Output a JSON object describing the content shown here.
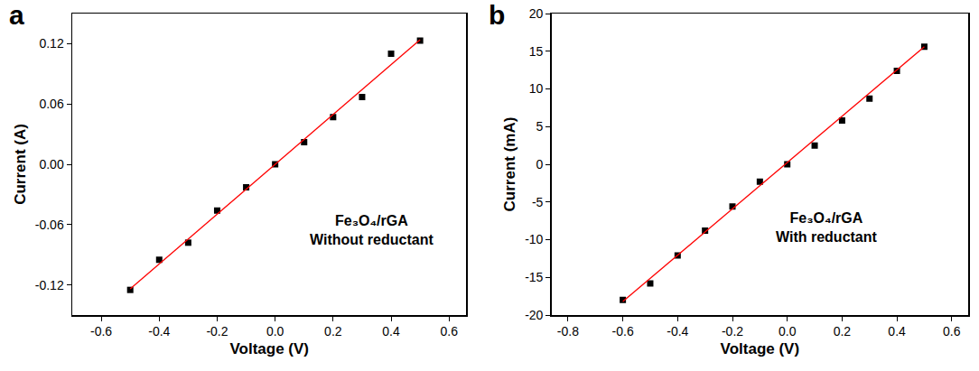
{
  "chart_data": [
    {
      "type": "scatter",
      "label": "a",
      "annotations": [
        "Fe₃O₄/rGA",
        "Without reductant"
      ],
      "x_label": "Voltage (V)",
      "y_label": "Current (A)",
      "xlim": [
        -0.7,
        0.66
      ],
      "ylim": [
        -0.15,
        0.15
      ],
      "xticks": [
        -0.6,
        -0.4,
        -0.2,
        {
          "value": 0,
          "label": "0.0"
        },
        0.2,
        0.4,
        0.6
      ],
      "yticks": [
        -0.12,
        -0.06,
        {
          "value": 0,
          "label": "0.00"
        },
        0.06,
        0.12
      ],
      "grid": false,
      "series": [
        {
          "type": "scatter",
          "marker": "square",
          "color": "#000000",
          "x": [
            -0.5,
            -0.4,
            -0.3,
            -0.2,
            -0.1,
            0,
            0.1,
            0.2,
            0.3,
            0.4,
            0.5
          ],
          "values": [
            -0.125,
            -0.095,
            -0.078,
            -0.046,
            -0.023,
            0,
            0.022,
            0.047,
            0.067,
            0.11,
            0.123
          ]
        },
        {
          "type": "line",
          "line_style": "solid",
          "color": "#ff0000",
          "x": [
            -0.5,
            0.5
          ],
          "values": [
            -0.124,
            0.124
          ]
        }
      ]
    },
    {
      "type": "scatter",
      "label": "b",
      "annotations": [
        "Fe₃O₄/rGA",
        "With reductant"
      ],
      "x_label": "Voltage (V)",
      "y_label": "Current (mA)",
      "xlim": [
        -0.86,
        0.66
      ],
      "ylim": [
        -20,
        20
      ],
      "xticks": [
        -0.8,
        -0.6,
        -0.4,
        -0.2,
        {
          "value": 0,
          "label": "0.0"
        },
        0.2,
        0.4,
        0.6
      ],
      "yticks": [
        -20,
        -15,
        -10,
        -5,
        0,
        5,
        10,
        15,
        20
      ],
      "grid": false,
      "series": [
        {
          "type": "scatter",
          "marker": "square",
          "color": "#000000",
          "x": [
            -0.6,
            -0.5,
            -0.4,
            -0.3,
            -0.2,
            -0.1,
            0,
            0.1,
            0.2,
            0.3,
            0.4,
            0.5
          ],
          "values": [
            -18,
            -15.8,
            -12.1,
            -8.8,
            -5.6,
            -2.3,
            0,
            2.5,
            5.8,
            8.7,
            12.4,
            15.6
          ]
        },
        {
          "type": "line",
          "line_style": "solid",
          "color": "#ff0000",
          "x": [
            -0.6,
            0.5
          ],
          "values": [
            -18.2,
            15.6
          ]
        }
      ]
    }
  ]
}
